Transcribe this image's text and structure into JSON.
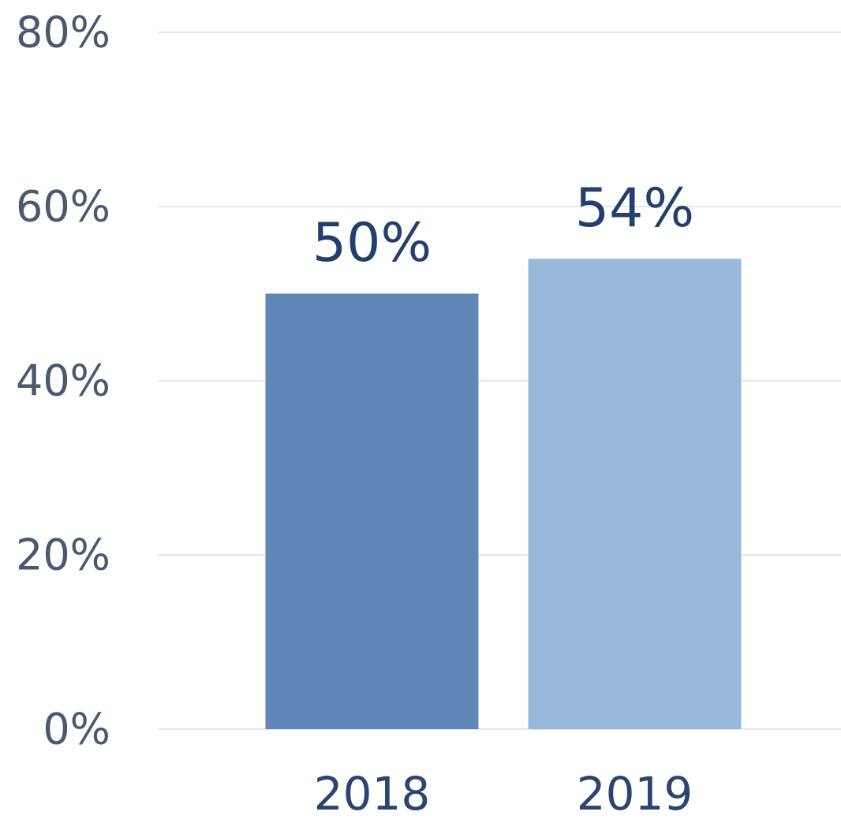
{
  "chart_data": {
    "type": "bar",
    "categories": [
      "2018",
      "2019"
    ],
    "values": [
      50,
      54
    ],
    "value_labels": [
      "50%",
      "54%"
    ],
    "colors": [
      "#6087b8",
      "#98b9db"
    ],
    "ylim": [
      0,
      80
    ],
    "yticks": [
      {
        "value": 0,
        "label": "0%"
      },
      {
        "value": 20,
        "label": "20%"
      },
      {
        "value": 40,
        "label": "40%"
      },
      {
        "value": 60,
        "label": "60%"
      },
      {
        "value": 80,
        "label": "80%"
      }
    ],
    "grid": true
  }
}
